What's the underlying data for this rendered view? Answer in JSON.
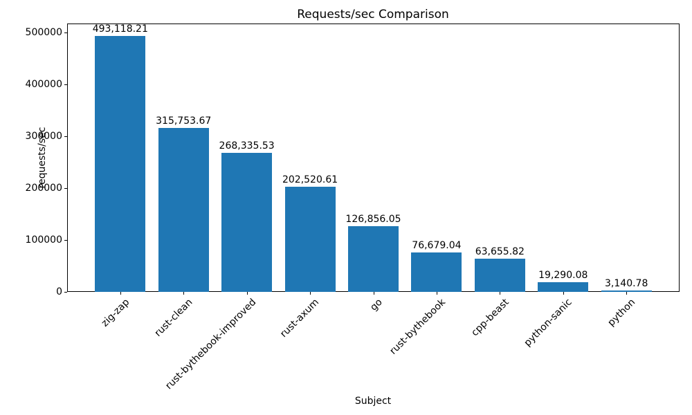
{
  "chart_data": {
    "type": "bar",
    "title": "Requests/sec Comparison",
    "xlabel": "Subject",
    "ylabel": "requests/sec",
    "categories": [
      "zig-zap",
      "rust-clean",
      "rust-bythebook-improved",
      "rust-axum",
      "go",
      "rust-bythebook",
      "cpp-beast",
      "python-sanic",
      "python"
    ],
    "values": [
      493118.21,
      315753.67,
      268335.53,
      202520.61,
      126856.05,
      76679.04,
      63655.82,
      19290.08,
      3140.78
    ],
    "value_labels": [
      "493,118.21",
      "315,753.67",
      "268,335.53",
      "202,520.61",
      "126,856.05",
      "76,679.04",
      "63,655.82",
      "19,290.08",
      "3,140.78"
    ],
    "yticks": [
      0,
      100000,
      200000,
      300000,
      400000,
      500000
    ],
    "ytick_labels": [
      "0",
      "100000",
      "200000",
      "300000",
      "400000",
      "500000"
    ],
    "ylim": [
      0,
      517774.12
    ],
    "bar_color": "#1f77b4",
    "bar_width_fraction": 0.8,
    "x_margin": 0.05,
    "xtick_rotation": 45,
    "grid": false,
    "legend": null
  }
}
